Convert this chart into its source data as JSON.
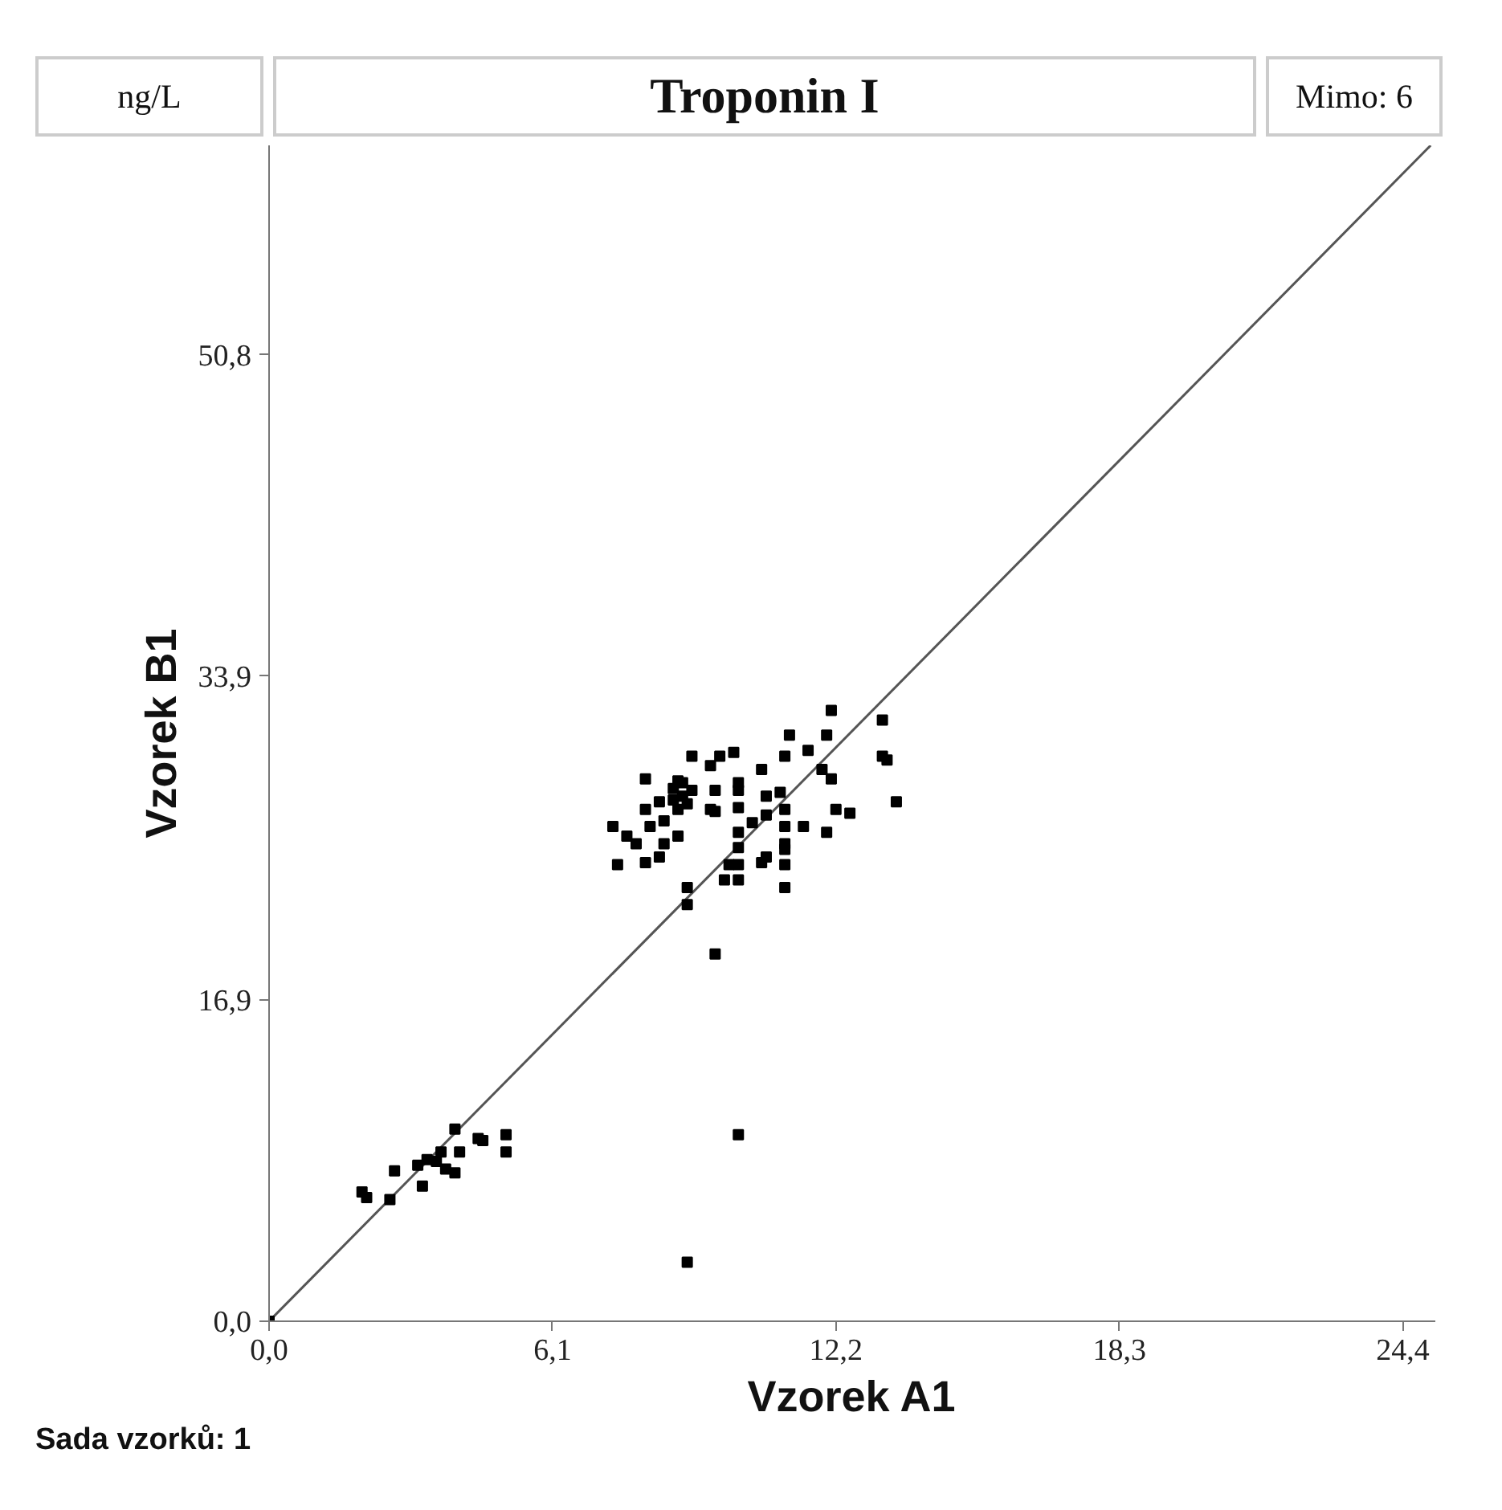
{
  "chart_data": {
    "type": "scatter",
    "title": "Troponin I",
    "xlabel": "Vzorek A1",
    "ylabel": "Vzorek B1",
    "annotations": [
      "ng/L",
      "Mimo: 6",
      "Sada vzorků: 1"
    ],
    "xlim": [
      0,
      25.1
    ],
    "ylim": [
      0,
      61.8
    ],
    "xticks": [
      {
        "value": 0,
        "label": "0,0"
      },
      {
        "value": 6.1,
        "label": "6,1"
      },
      {
        "value": 12.2,
        "label": "12,2"
      },
      {
        "value": 18.3,
        "label": "18,3"
      },
      {
        "value": 24.4,
        "label": "24,4"
      }
    ],
    "yticks": [
      {
        "value": 0,
        "label": "0,0"
      },
      {
        "value": 16.9,
        "label": "16,9"
      },
      {
        "value": 33.9,
        "label": "33,9"
      },
      {
        "value": 50.8,
        "label": "50,8"
      }
    ],
    "grid": false,
    "marker": "square",
    "series": [
      {
        "type": "line",
        "marker": "none",
        "color": "#555555",
        "x": [
          0,
          25.0
        ],
        "values": [
          0,
          61.8
        ]
      },
      {
        "color": "#000000",
        "x": [
          0,
          12.1,
          13.2,
          11.2,
          12.0,
          9.1,
          9.7,
          10.0,
          11.1,
          11.6,
          13.2,
          13.3,
          9.5,
          10.6,
          11.9,
          8.1,
          8.8,
          8.9,
          8.7,
          9.1,
          8.9,
          8.7,
          9.0,
          8.8,
          10.1,
          12.1,
          9.6,
          10.1,
          10.7,
          11.0,
          13.5,
          8.4,
          8.1,
          9.5,
          9.6,
          10.1,
          11.1,
          12.2,
          12.5,
          10.7,
          8.5,
          7.4,
          8.2,
          10.4,
          10.1,
          11.1,
          11.5,
          12.0,
          7.7,
          8.8,
          7.9,
          8.5,
          10.1,
          11.1,
          11.1,
          8.4,
          8.1,
          10.7,
          10.6,
          7.5,
          9.9,
          10.1,
          11.1,
          9.8,
          10.1,
          9.0,
          11.1,
          9.0,
          9.6,
          10.1,
          9.0,
          4.0,
          4.5,
          4.6,
          5.1,
          5.1,
          4.1,
          3.7,
          3.4,
          3.2,
          3.6,
          3.8,
          4.0,
          2.7,
          3.3,
          2.0,
          2.1,
          2.6
        ],
        "values": [
          0,
          32.1,
          31.6,
          30.8,
          30.8,
          29.7,
          29.7,
          29.9,
          29.7,
          30.0,
          29.7,
          29.5,
          29.2,
          29.0,
          29.0,
          28.5,
          28.4,
          28.3,
          28.0,
          27.9,
          27.6,
          27.4,
          27.2,
          26.9,
          28.3,
          28.5,
          27.9,
          27.9,
          27.6,
          27.8,
          27.3,
          27.3,
          26.9,
          26.9,
          26.8,
          27.0,
          26.9,
          26.9,
          26.7,
          26.6,
          26.3,
          26.0,
          26.0,
          26.2,
          25.7,
          26.0,
          26.0,
          25.7,
          25.5,
          25.5,
          25.1,
          25.1,
          24.9,
          25.1,
          24.8,
          24.4,
          24.1,
          24.4,
          24.1,
          24.0,
          24.0,
          24.0,
          24.0,
          23.2,
          23.2,
          22.8,
          22.8,
          21.9,
          19.3,
          9.8,
          3.1,
          10.1,
          9.6,
          9.5,
          9.8,
          8.9,
          8.9,
          8.9,
          8.5,
          8.2,
          8.4,
          8.0,
          7.8,
          7.9,
          7.1,
          6.8,
          6.5,
          6.4
        ]
      }
    ]
  }
}
